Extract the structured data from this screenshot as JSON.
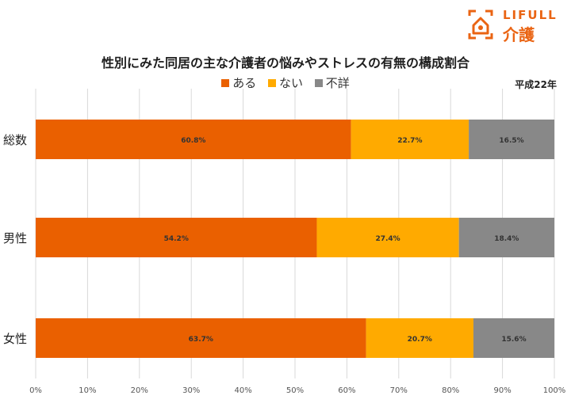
{
  "logo": {
    "name": "LIFULL",
    "sub": "介護",
    "color": "#EA6413"
  },
  "note": "平成22年",
  "chart_data": {
    "type": "bar",
    "orientation": "horizontal",
    "stacked": true,
    "title": "性別にみた同居の主な介護者の悩みやストレスの有無の構成割合",
    "categories": [
      "総数",
      "男性",
      "女性"
    ],
    "series": [
      {
        "name": "ある",
        "values": [
          60.8,
          54.2,
          63.7
        ],
        "labels": [
          "60.8%",
          "54.2%",
          "63.7%"
        ],
        "color": "#EA6000"
      },
      {
        "name": "ない",
        "values": [
          22.7,
          27.4,
          20.7
        ],
        "labels": [
          "22.7%",
          "27.4%",
          "20.7%"
        ],
        "color": "#FFAA00"
      },
      {
        "name": "不詳",
        "values": [
          16.5,
          18.4,
          15.6
        ],
        "labels": [
          "16.5%",
          "18.4%",
          "15.6%"
        ],
        "color": "#888888"
      }
    ],
    "xlim": [
      0,
      100
    ],
    "x_ticks": [
      "0%",
      "10%",
      "20%",
      "30%",
      "40%",
      "50%",
      "60%",
      "70%",
      "80%",
      "90%",
      "100%"
    ],
    "grid": true,
    "legend_position": "top"
  }
}
